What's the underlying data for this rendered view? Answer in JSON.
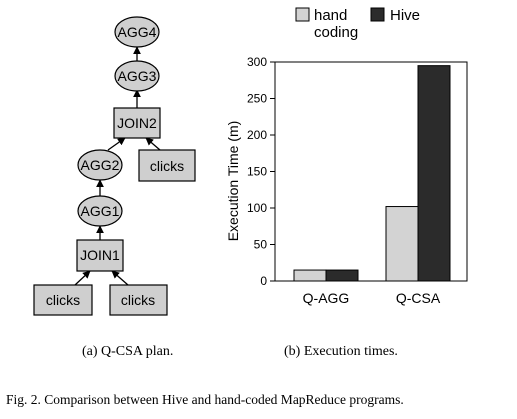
{
  "plan": {
    "nodes": [
      {
        "label": "AGG4",
        "shape": "ellipse"
      },
      {
        "label": "AGG3",
        "shape": "ellipse"
      },
      {
        "label": "JOIN2",
        "shape": "rect"
      },
      {
        "label": "AGG2",
        "shape": "ellipse"
      },
      {
        "label": "clicks",
        "shape": "rect"
      },
      {
        "label": "AGG1",
        "shape": "ellipse"
      },
      {
        "label": "JOIN1",
        "shape": "rect"
      },
      {
        "label": "clicks",
        "shape": "rect"
      },
      {
        "label": "clicks",
        "shape": "rect"
      }
    ],
    "caption": "(a) Q-CSA plan."
  },
  "chart_data": {
    "type": "bar",
    "categories": [
      "Q-AGG",
      "Q-CSA"
    ],
    "series": [
      {
        "name": "hand coding",
        "values": [
          15,
          102
        ],
        "color": "#d3d3d3"
      },
      {
        "name": "Hive",
        "values": [
          15,
          295
        ],
        "color": "#2b2b2b"
      }
    ],
    "ylabel": "Execution Time (m)",
    "ylim": [
      0,
      300
    ],
    "yticks": [
      0,
      50,
      100,
      150,
      200,
      250,
      300
    ],
    "legend_position": "top",
    "grid": false
  },
  "legend_lines": {
    "hand": [
      "hand",
      "coding"
    ],
    "hive": [
      "Hive"
    ]
  },
  "captions": {
    "b": "(b) Execution times.",
    "fig": "Fig. 2.   Comparison between Hive and hand-coded MapReduce programs."
  }
}
